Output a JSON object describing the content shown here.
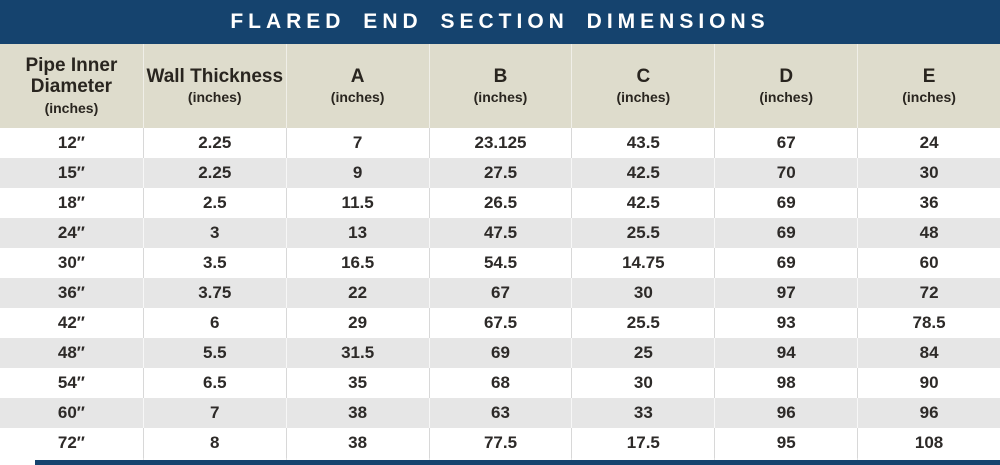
{
  "title": "FLARED END SECTION DIMENSIONS",
  "colors": {
    "banner_navy": "#15436e",
    "header_beige": "#dedccc",
    "row_alt_gray": "#e6e6e6",
    "text_dark": "#2d2a28"
  },
  "table": {
    "columns": [
      {
        "key": "pipe-inner-diameter",
        "label": "Pipe Inner Diameter",
        "sub": "(inches)"
      },
      {
        "key": "wall-thickness",
        "label": "Wall Thickness",
        "sub": "(inches)"
      },
      {
        "key": "a",
        "label": "A",
        "sub": "(inches)"
      },
      {
        "key": "b",
        "label": "B",
        "sub": "(inches)"
      },
      {
        "key": "c",
        "label": "C",
        "sub": "(inches)"
      },
      {
        "key": "d",
        "label": "D",
        "sub": "(inches)"
      },
      {
        "key": "e",
        "label": "E",
        "sub": "(inches)"
      }
    ],
    "rows": [
      [
        "12″",
        "2.25",
        "7",
        "23.125",
        "43.5",
        "67",
        "24"
      ],
      [
        "15″",
        "2.25",
        "9",
        "27.5",
        "42.5",
        "70",
        "30"
      ],
      [
        "18″",
        "2.5",
        "11.5",
        "26.5",
        "42.5",
        "69",
        "36"
      ],
      [
        "24″",
        "3",
        "13",
        "47.5",
        "25.5",
        "69",
        "48"
      ],
      [
        "30″",
        "3.5",
        "16.5",
        "54.5",
        "14.75",
        "69",
        "60"
      ],
      [
        "36″",
        "3.75",
        "22",
        "67",
        "30",
        "97",
        "72"
      ],
      [
        "42″",
        "6",
        "29",
        "67.5",
        "25.5",
        "93",
        "78.5"
      ],
      [
        "48″",
        "5.5",
        "31.5",
        "69",
        "25",
        "94",
        "84"
      ],
      [
        "54″",
        "6.5",
        "35",
        "68",
        "30",
        "98",
        "90"
      ],
      [
        "60″",
        "7",
        "38",
        "63",
        "33",
        "96",
        "96"
      ],
      [
        "72″",
        "8",
        "38",
        "77.5",
        "17.5",
        "95",
        "108"
      ]
    ]
  }
}
